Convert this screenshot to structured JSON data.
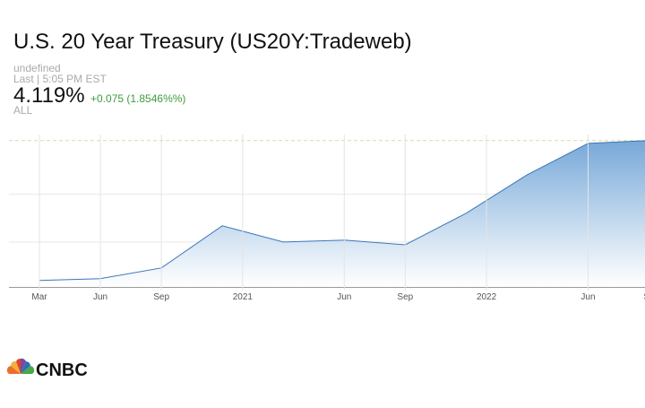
{
  "chart_data": {
    "type": "area",
    "title": "U.S. 20 Year Treasury (US20Y:Tradeweb)",
    "status": "undefined",
    "last_updated": "Last | 5:05 PM EST",
    "last_price": {
      "value": 4.119,
      "label": "4.119%"
    },
    "change": "+0.075 (1.8546%%)",
    "range": "ALL",
    "logo": "CNBC",
    "x": [
      0,
      3,
      6,
      9,
      12,
      15,
      18,
      21,
      24,
      27,
      30
    ],
    "values": [
      1.1,
      1.14,
      1.37,
      2.28,
      1.93,
      1.97,
      1.87,
      2.55,
      3.38,
      4.06,
      4.12
    ],
    "color": "#3b76b8",
    "change_color": "#3c9d3c",
    "xlim": [
      -1.5,
      29.8
    ],
    "xticks": [
      {
        "value": 0,
        "label": "Mar"
      },
      {
        "value": 3,
        "label": "Jun"
      },
      {
        "value": 6,
        "label": "Sep"
      },
      {
        "value": 10,
        "label": "2021"
      },
      {
        "value": 15,
        "label": "Jun"
      },
      {
        "value": 18,
        "label": "Sep"
      },
      {
        "value": 22,
        "label": "2022"
      },
      {
        "value": 27,
        "label": "Jun"
      },
      {
        "value": 30,
        "label": "Se"
      }
    ],
    "ylim": [
      0.96,
      4.25
    ],
    "gridlines": [
      1.93,
      2.96
    ]
  }
}
